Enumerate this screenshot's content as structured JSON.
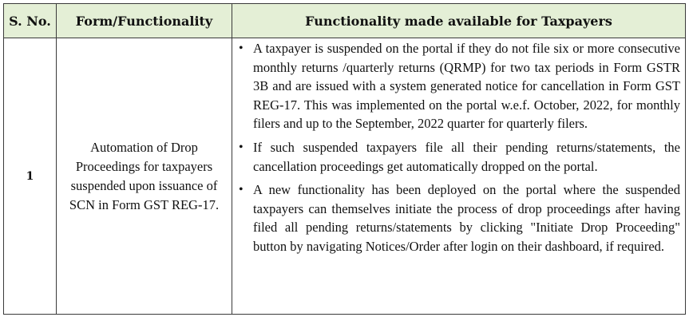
{
  "table": {
    "headers": [
      "S. No.",
      "Form/Functionality",
      "Functionality made available for Taxpayers"
    ],
    "rows": [
      {
        "sno": "1",
        "form": "Automation of Drop Proceedings for taxpayers suspended upon issuance of SCN in Form GST REG-17.",
        "points": [
          "A taxpayer is suspended on the portal if they do not file six or more consecutive monthly returns /quarterly returns (QRMP) for two tax periods in Form GSTR 3B and are issued with a system generated notice for cancellation in Form GST REG-17. This was implemented on the portal w.e.f. October, 2022, for monthly filers and up to the September, 2022 quarter for quarterly filers.",
          "If such suspended taxpayers file all their pending returns/statements, the cancellation proceedings get automatically dropped on the portal.",
          "A new functionality has been deployed on the portal where the suspended taxpayers can themselves initiate the process of drop proceedings after having filed all pending returns/statements by clicking \"Initiate Drop Proceeding\" button by navigating Notices/Order after login on their dashboard, if required."
        ]
      }
    ]
  },
  "bullet_glyph": "•"
}
